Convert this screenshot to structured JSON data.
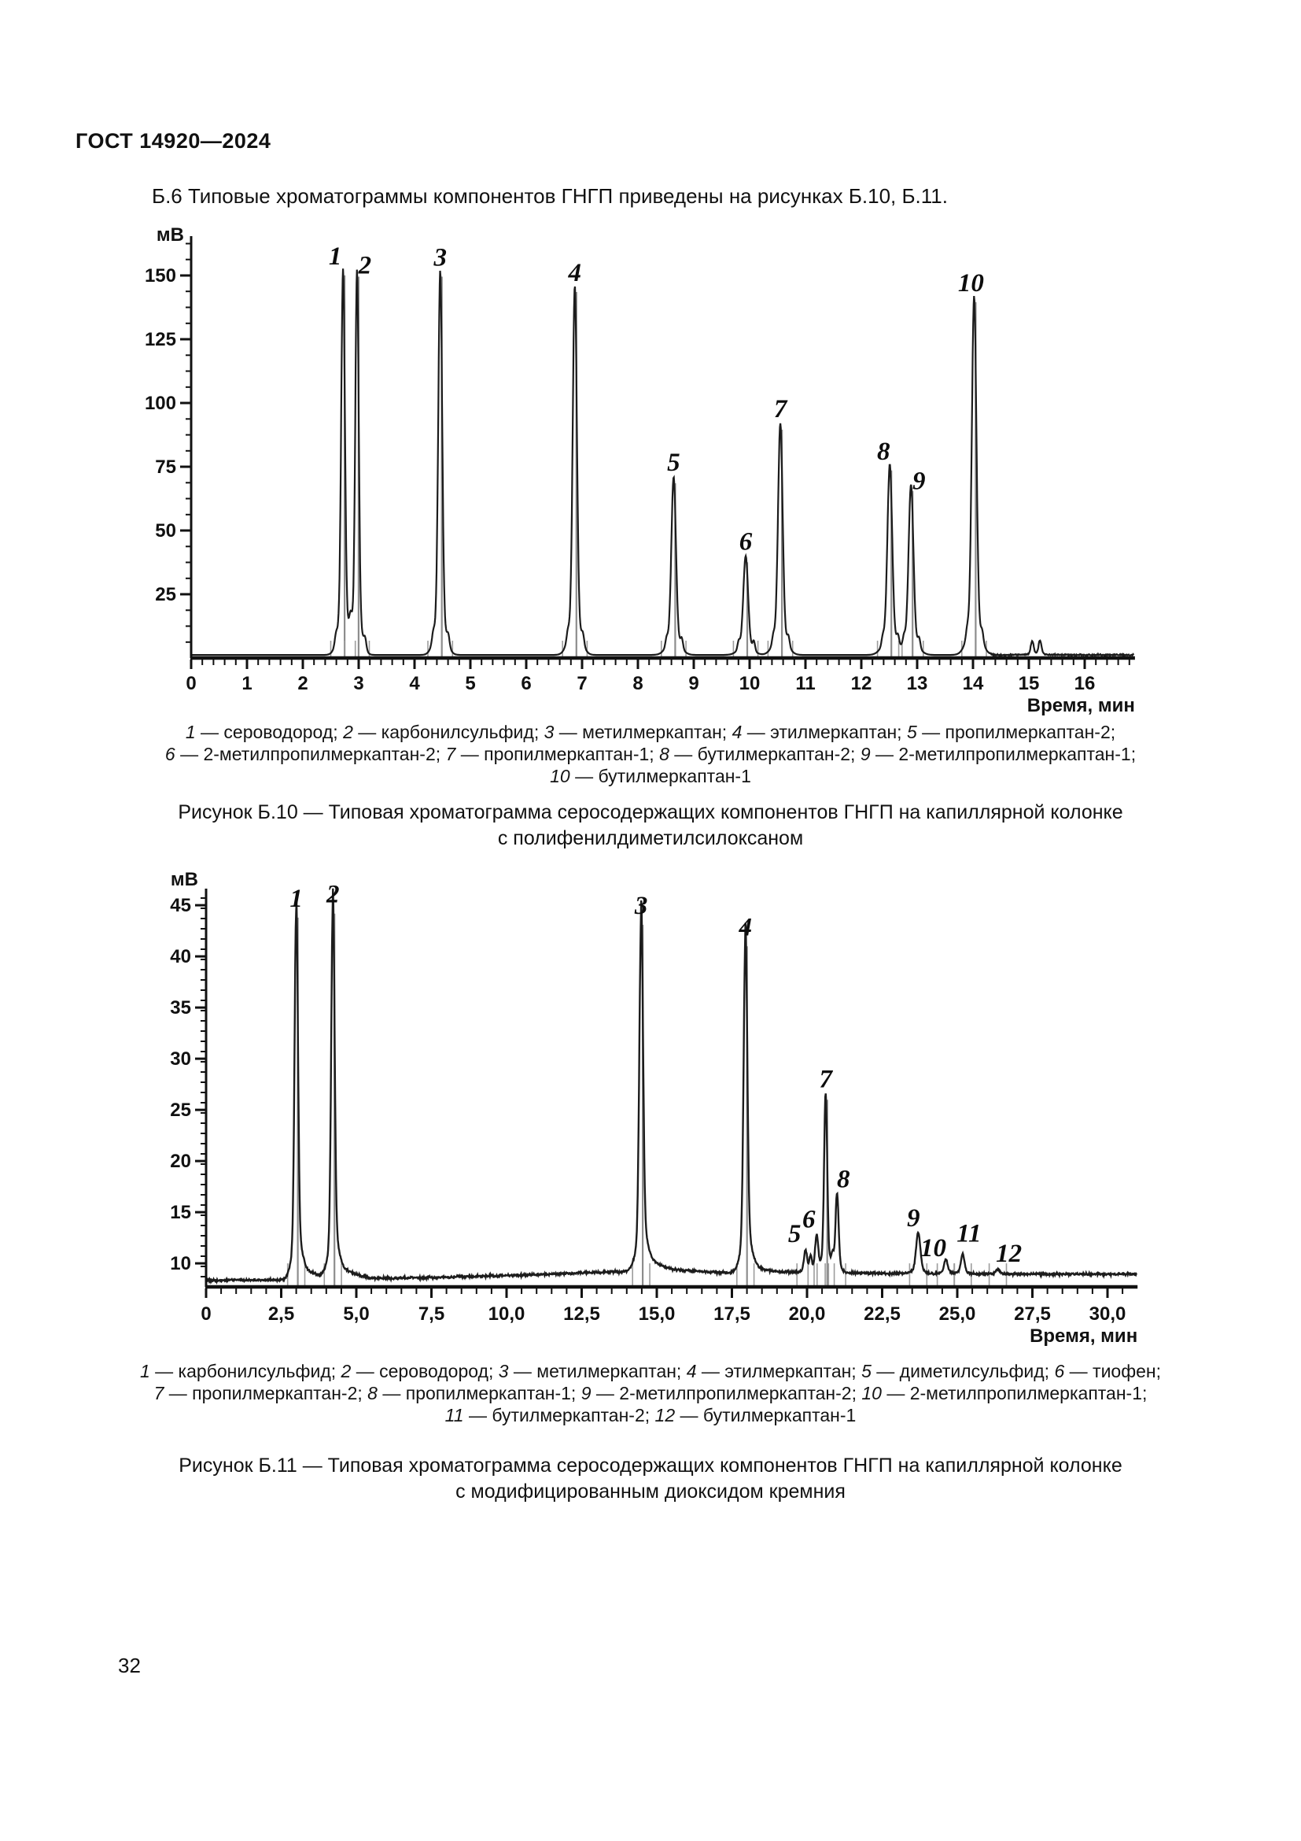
{
  "page": {
    "header": "ГОСТ 14920—2024",
    "intro": "Б.6 Типовые хроматограммы компонентов ГНГП приведены на рисунках Б.10, Б.11.",
    "page_number": "32"
  },
  "figure_b10": {
    "caption_lines": [
      "1 — сероводород; 2 — карбонилсульфид; 3 — метилмеркаптан; 4 — этилмеркаптан; 5 — пропилмеркаптан-2;",
      "6 — 2-метилпропилмеркаптан-2; 7 — пропилмеркаптан-1; 8 — бутилмеркаптан-2; 9 — 2-метилпропилмеркаптан-1;",
      "10 — бутилмеркаптан-1"
    ],
    "title_lines": [
      "Рисунок Б.10 — Типовая хроматограмма серосодержащих компонентов ГНГП на капиллярной колонке",
      "с полифенилдиметилсилоксаном"
    ],
    "chart_data": {
      "type": "line",
      "title": "",
      "ylabel": "мВ",
      "xlabel": "Время, мин",
      "xlim": [
        0,
        16.9
      ],
      "ylim": [
        0,
        166
      ],
      "grid": false,
      "baseline_mv": 1.2,
      "noise_after_t": 14.3,
      "noise_amp": 0.35,
      "x_major_ticks": [
        0,
        1,
        2,
        3,
        4,
        5,
        6,
        7,
        8,
        9,
        10,
        11,
        12,
        13,
        14,
        15,
        16
      ],
      "x_tick_labels": [
        "0",
        "1",
        "2",
        "3",
        "4",
        "5",
        "6",
        "7",
        "8",
        "9",
        "10",
        "11",
        "12",
        "13",
        "14",
        "15",
        "16"
      ],
      "x_minor_step": 0.2,
      "y_major_ticks": [
        25,
        50,
        75,
        100,
        125,
        150
      ],
      "y_minor_step": 6.25,
      "y_minor_max": 162.5,
      "peaks": [
        {
          "label": "1",
          "t": 2.72,
          "apex_mv": 152.5,
          "sigma": 0.032,
          "label_dx": -10,
          "label_dy": 0
        },
        {
          "label": "2",
          "t": 2.97,
          "apex_mv": 152.0,
          "sigma": 0.03,
          "label_dx": 10,
          "label_dy": 10
        },
        {
          "label": "3",
          "t": 4.46,
          "apex_mv": 152.0,
          "sigma": 0.034,
          "label_dx": 0,
          "label_dy": 0
        },
        {
          "label": "4",
          "t": 6.87,
          "apex_mv": 146.0,
          "sigma": 0.036,
          "label_dx": 0,
          "label_dy": 0
        },
        {
          "label": "5",
          "t": 8.64,
          "apex_mv": 71.0,
          "sigma": 0.04,
          "label_dx": 0,
          "label_dy": -2
        },
        {
          "label": "6",
          "t": 9.93,
          "apex_mv": 40.0,
          "sigma": 0.042,
          "label_dx": 0,
          "label_dy": -2
        },
        {
          "label": "7",
          "t": 10.55,
          "apex_mv": 92.0,
          "sigma": 0.04,
          "label_dx": 0,
          "label_dy": -2
        },
        {
          "label": "8",
          "t": 12.51,
          "apex_mv": 76.0,
          "sigma": 0.042,
          "label_dx": -8,
          "label_dy": 0
        },
        {
          "label": "9",
          "t": 12.89,
          "apex_mv": 68.0,
          "sigma": 0.042,
          "label_dx": 10,
          "label_dy": 12
        },
        {
          "label": "10",
          "t": 14.02,
          "apex_mv": 142.0,
          "sigma": 0.04,
          "label_dx": -4,
          "label_dy": 0
        },
        {
          "label": "",
          "t": 15.06,
          "apex_mv": 6.6,
          "sigma": 0.025
        },
        {
          "label": "",
          "t": 15.2,
          "apex_mv": 6.9,
          "sigma": 0.025
        }
      ]
    }
  },
  "figure_b11": {
    "caption_lines": [
      "1 — карбонилсульфид; 2 — сероводород; 3 — метилмеркаптан; 4 — этилмеркаптан; 5 — диметилсульфид; 6 — тиофен;",
      "7 — пропилмеркаптан-2; 8 — пропилмеркаптан-1; 9 — 2-метилпропилмеркаптан-2; 10 — 2-метилпропилмеркаптан-1;",
      "11 — бутилмеркаптан-2; 12 — бутилмеркаптан-1"
    ],
    "title_lines": [
      "Рисунок Б.11 — Типовая хроматограмма серосодержащих компонентов ГНГП на капиллярной колонке",
      "с модифицированным диоксидом кремния"
    ],
    "chart_data": {
      "type": "line",
      "title": "",
      "ylabel": "мВ",
      "xlabel": "Время, мин",
      "xlim": [
        0,
        31
      ],
      "ylim": [
        7.7,
        47
      ],
      "grid": false,
      "noise_amp": 0.14,
      "baseline_points": [
        [
          0,
          8.35
        ],
        [
          2.6,
          8.35
        ],
        [
          3.4,
          8.6
        ],
        [
          4.0,
          8.6
        ],
        [
          4.7,
          8.75
        ],
        [
          5.5,
          8.5
        ],
        [
          8,
          8.65
        ],
        [
          11,
          8.9
        ],
        [
          14.2,
          9.25
        ],
        [
          14.9,
          9.6
        ],
        [
          15.6,
          9.3
        ],
        [
          17.5,
          9.05
        ],
        [
          19.5,
          9.1
        ],
        [
          21.6,
          9.05
        ],
        [
          23.3,
          9.0
        ],
        [
          27,
          8.95
        ],
        [
          30.9,
          8.95
        ]
      ],
      "x_major_ticks": [
        0,
        2.5,
        5,
        7.5,
        10,
        12.5,
        15,
        17.5,
        20,
        22.5,
        25,
        27.5,
        30
      ],
      "x_tick_labels": [
        "0",
        "2,5",
        "5,0",
        "7,5",
        "10,0",
        "12,5",
        "15,0",
        "17,5",
        "20,0",
        "22,5",
        "25,0",
        "27,5",
        "30,0"
      ],
      "x_minor_step": 0.5,
      "y_major_ticks": [
        10,
        15,
        20,
        25,
        30,
        35,
        40,
        45
      ],
      "y_minor_step": 1,
      "y_minor_max": 46,
      "peaks": [
        {
          "label": "1",
          "t": 3.0,
          "apex_mv": 44.4,
          "sigma": 0.055,
          "tail": true,
          "label_dx": 0,
          "label_dy": 0
        },
        {
          "label": "2",
          "t": 4.22,
          "apex_mv": 44.8,
          "sigma": 0.055,
          "tail": true,
          "label_dx": 0,
          "label_dy": 0
        },
        {
          "label": "3",
          "t": 14.48,
          "apex_mv": 43.7,
          "sigma": 0.06,
          "tail": true,
          "label_dx": 0,
          "label_dy": 0
        },
        {
          "label": "4",
          "t": 17.95,
          "apex_mv": 41.6,
          "sigma": 0.06,
          "tail": true,
          "label_dx": 0,
          "label_dy": 0
        },
        {
          "label": "5",
          "t": 19.95,
          "apex_mv": 11.3,
          "sigma": 0.05,
          "label_dx": -14,
          "label_dy": -4
        },
        {
          "label": "6",
          "t": 20.32,
          "apex_mv": 12.6,
          "sigma": 0.05,
          "label_dx": -10,
          "label_dy": -6
        },
        {
          "label": "7",
          "t": 20.62,
          "apex_mv": 26.6,
          "sigma": 0.05,
          "label_dx": 0,
          "label_dy": -2
        },
        {
          "label": "8",
          "t": 21.0,
          "apex_mv": 16.8,
          "sigma": 0.05,
          "label_dx": 8,
          "label_dy": -2
        },
        {
          "label": "9",
          "t": 23.7,
          "apex_mv": 13.0,
          "sigma": 0.07,
          "label_dx": -6,
          "label_dy": -2
        },
        {
          "label": "10",
          "t": 24.62,
          "apex_mv": 10.4,
          "sigma": 0.06,
          "label_dx": -16,
          "label_dy": 2
        },
        {
          "label": "11",
          "t": 25.18,
          "apex_mv": 10.9,
          "sigma": 0.06,
          "label_dx": 8,
          "label_dy": -10
        },
        {
          "label": "12",
          "t": 26.35,
          "apex_mv": 9.4,
          "sigma": 0.07,
          "label_dx": 14,
          "label_dy": -4
        },
        {
          "label": "",
          "t": 20.12,
          "apex_mv": 10.6,
          "sigma": 0.04
        },
        {
          "label": "",
          "t": 20.85,
          "apex_mv": 10.3,
          "sigma": 0.04
        }
      ]
    }
  }
}
